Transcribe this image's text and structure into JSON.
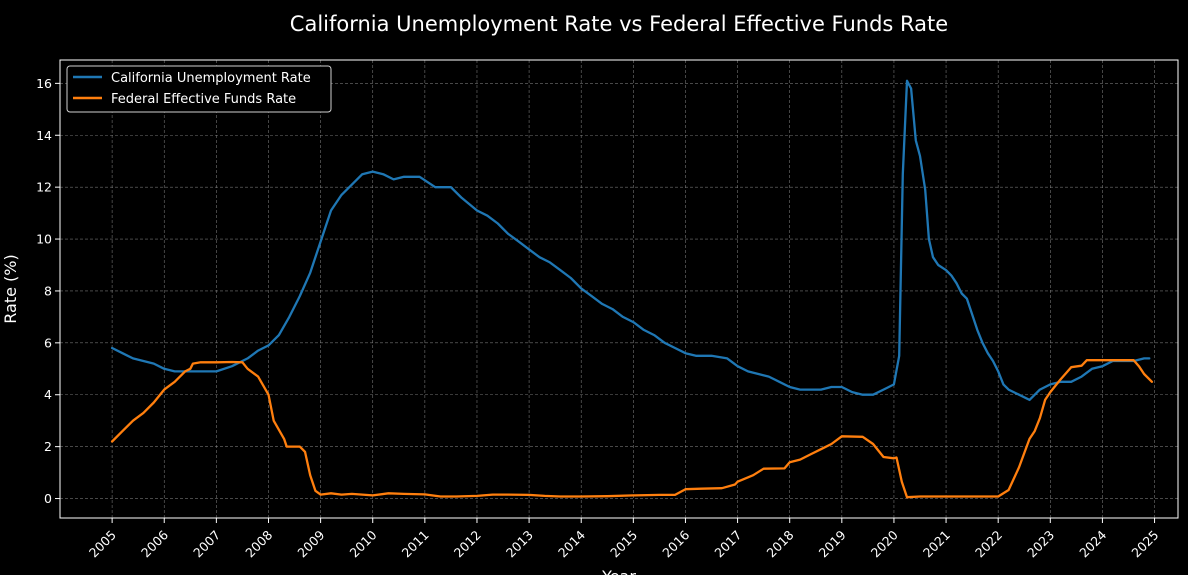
{
  "chart_data": {
    "type": "line",
    "title": "California Unemployment Rate vs Federal Effective Funds Rate",
    "xlabel": "Year",
    "ylabel": "Rate (%)",
    "xlim": [
      2004.0,
      2025.45
    ],
    "ylim": [
      -0.75,
      16.9
    ],
    "grid": true,
    "legend_position": "top-left",
    "x_ticks": [
      2005,
      2006,
      2007,
      2008,
      2009,
      2010,
      2011,
      2012,
      2013,
      2014,
      2015,
      2016,
      2017,
      2018,
      2019,
      2020,
      2021,
      2022,
      2023,
      2024,
      2025
    ],
    "y_ticks": [
      0,
      2,
      4,
      6,
      8,
      10,
      12,
      14,
      16
    ],
    "colors": {
      "background": "#000000",
      "axes": "#ffffff",
      "grid": "#9a9a9a"
    },
    "series": [
      {
        "name": "California Unemployment Rate",
        "color": "#1f77b4",
        "points": [
          [
            2005.0,
            5.8
          ],
          [
            2005.2,
            5.6
          ],
          [
            2005.4,
            5.4
          ],
          [
            2005.6,
            5.3
          ],
          [
            2005.8,
            5.2
          ],
          [
            2006.0,
            5.0
          ],
          [
            2006.2,
            4.9
          ],
          [
            2006.5,
            4.9
          ],
          [
            2007.0,
            4.9
          ],
          [
            2007.3,
            5.1
          ],
          [
            2007.6,
            5.4
          ],
          [
            2007.8,
            5.7
          ],
          [
            2008.0,
            5.9
          ],
          [
            2008.2,
            6.3
          ],
          [
            2008.4,
            7.0
          ],
          [
            2008.6,
            7.8
          ],
          [
            2008.8,
            8.7
          ],
          [
            2009.0,
            9.9
          ],
          [
            2009.2,
            11.1
          ],
          [
            2009.4,
            11.7
          ],
          [
            2009.6,
            12.1
          ],
          [
            2009.8,
            12.5
          ],
          [
            2010.0,
            12.6
          ],
          [
            2010.2,
            12.5
          ],
          [
            2010.4,
            12.3
          ],
          [
            2010.6,
            12.4
          ],
          [
            2010.9,
            12.4
          ],
          [
            2011.2,
            12.0
          ],
          [
            2011.5,
            12.0
          ],
          [
            2011.7,
            11.6
          ],
          [
            2012.0,
            11.1
          ],
          [
            2012.2,
            10.9
          ],
          [
            2012.4,
            10.6
          ],
          [
            2012.6,
            10.2
          ],
          [
            2012.8,
            9.9
          ],
          [
            2013.0,
            9.6
          ],
          [
            2013.2,
            9.3
          ],
          [
            2013.4,
            9.1
          ],
          [
            2013.6,
            8.8
          ],
          [
            2013.8,
            8.5
          ],
          [
            2014.0,
            8.1
          ],
          [
            2014.2,
            7.8
          ],
          [
            2014.4,
            7.5
          ],
          [
            2014.6,
            7.3
          ],
          [
            2014.8,
            7.0
          ],
          [
            2015.0,
            6.8
          ],
          [
            2015.2,
            6.5
          ],
          [
            2015.4,
            6.3
          ],
          [
            2015.6,
            6.0
          ],
          [
            2015.8,
            5.8
          ],
          [
            2016.0,
            5.6
          ],
          [
            2016.2,
            5.5
          ],
          [
            2016.5,
            5.5
          ],
          [
            2016.8,
            5.4
          ],
          [
            2017.0,
            5.1
          ],
          [
            2017.2,
            4.9
          ],
          [
            2017.4,
            4.8
          ],
          [
            2017.6,
            4.7
          ],
          [
            2017.8,
            4.5
          ],
          [
            2018.0,
            4.3
          ],
          [
            2018.2,
            4.2
          ],
          [
            2018.6,
            4.2
          ],
          [
            2018.8,
            4.3
          ],
          [
            2019.0,
            4.3
          ],
          [
            2019.2,
            4.1
          ],
          [
            2019.4,
            4.0
          ],
          [
            2019.6,
            4.0
          ],
          [
            2019.8,
            4.2
          ],
          [
            2020.0,
            4.4
          ],
          [
            2020.1,
            5.5
          ],
          [
            2020.17,
            12.5
          ],
          [
            2020.25,
            16.1
          ],
          [
            2020.33,
            15.8
          ],
          [
            2020.42,
            13.8
          ],
          [
            2020.5,
            13.2
          ],
          [
            2020.6,
            11.9
          ],
          [
            2020.67,
            10.0
          ],
          [
            2020.75,
            9.3
          ],
          [
            2020.85,
            9.0
          ],
          [
            2021.0,
            8.8
          ],
          [
            2021.1,
            8.6
          ],
          [
            2021.2,
            8.3
          ],
          [
            2021.3,
            7.9
          ],
          [
            2021.4,
            7.7
          ],
          [
            2021.5,
            7.1
          ],
          [
            2021.6,
            6.5
          ],
          [
            2021.7,
            6.0
          ],
          [
            2021.8,
            5.6
          ],
          [
            2021.9,
            5.3
          ],
          [
            2022.0,
            4.9
          ],
          [
            2022.1,
            4.4
          ],
          [
            2022.2,
            4.2
          ],
          [
            2022.4,
            4.0
          ],
          [
            2022.6,
            3.8
          ],
          [
            2022.8,
            4.2
          ],
          [
            2023.0,
            4.4
          ],
          [
            2023.2,
            4.5
          ],
          [
            2023.4,
            4.5
          ],
          [
            2023.6,
            4.7
          ],
          [
            2023.8,
            5.0
          ],
          [
            2024.0,
            5.1
          ],
          [
            2024.2,
            5.3
          ],
          [
            2024.4,
            5.3
          ],
          [
            2024.6,
            5.3
          ],
          [
            2024.8,
            5.4
          ],
          [
            2024.9,
            5.4
          ]
        ]
      },
      {
        "name": "Federal Effective Funds Rate",
        "color": "#ff7f0e",
        "points": [
          [
            2005.0,
            2.2
          ],
          [
            2005.2,
            2.6
          ],
          [
            2005.4,
            3.0
          ],
          [
            2005.6,
            3.3
          ],
          [
            2005.8,
            3.7
          ],
          [
            2006.0,
            4.2
          ],
          [
            2006.2,
            4.5
          ],
          [
            2006.4,
            4.9
          ],
          [
            2006.5,
            5.0
          ],
          [
            2006.55,
            5.2
          ],
          [
            2006.7,
            5.25
          ],
          [
            2007.0,
            5.25
          ],
          [
            2007.3,
            5.26
          ],
          [
            2007.5,
            5.25
          ],
          [
            2007.6,
            5.0
          ],
          [
            2007.8,
            4.7
          ],
          [
            2008.0,
            4.0
          ],
          [
            2008.1,
            3.0
          ],
          [
            2008.3,
            2.3
          ],
          [
            2008.35,
            2.0
          ],
          [
            2008.6,
            2.0
          ],
          [
            2008.7,
            1.8
          ],
          [
            2008.8,
            0.9
          ],
          [
            2008.9,
            0.3
          ],
          [
            2009.0,
            0.15
          ],
          [
            2009.2,
            0.2
          ],
          [
            2009.4,
            0.15
          ],
          [
            2009.6,
            0.18
          ],
          [
            2010.0,
            0.12
          ],
          [
            2010.3,
            0.2
          ],
          [
            2010.6,
            0.18
          ],
          [
            2011.0,
            0.16
          ],
          [
            2011.3,
            0.08
          ],
          [
            2011.6,
            0.08
          ],
          [
            2012.0,
            0.1
          ],
          [
            2012.3,
            0.15
          ],
          [
            2012.6,
            0.15
          ],
          [
            2013.0,
            0.14
          ],
          [
            2013.3,
            0.1
          ],
          [
            2013.6,
            0.08
          ],
          [
            2014.0,
            0.08
          ],
          [
            2014.5,
            0.09
          ],
          [
            2015.0,
            0.12
          ],
          [
            2015.5,
            0.14
          ],
          [
            2015.8,
            0.14
          ],
          [
            2016.0,
            0.36
          ],
          [
            2016.3,
            0.38
          ],
          [
            2016.7,
            0.4
          ],
          [
            2016.95,
            0.54
          ],
          [
            2017.0,
            0.65
          ],
          [
            2017.3,
            0.9
          ],
          [
            2017.5,
            1.15
          ],
          [
            2017.9,
            1.16
          ],
          [
            2018.0,
            1.4
          ],
          [
            2018.2,
            1.5
          ],
          [
            2018.4,
            1.7
          ],
          [
            2018.6,
            1.9
          ],
          [
            2018.8,
            2.1
          ],
          [
            2019.0,
            2.4
          ],
          [
            2019.4,
            2.38
          ],
          [
            2019.6,
            2.1
          ],
          [
            2019.8,
            1.6
          ],
          [
            2020.0,
            1.55
          ],
          [
            2020.05,
            1.58
          ],
          [
            2020.15,
            0.65
          ],
          [
            2020.25,
            0.05
          ],
          [
            2020.5,
            0.08
          ],
          [
            2021.0,
            0.08
          ],
          [
            2021.5,
            0.08
          ],
          [
            2022.0,
            0.08
          ],
          [
            2022.2,
            0.33
          ],
          [
            2022.4,
            1.2
          ],
          [
            2022.6,
            2.3
          ],
          [
            2022.7,
            2.6
          ],
          [
            2022.8,
            3.1
          ],
          [
            2022.9,
            3.8
          ],
          [
            2023.0,
            4.1
          ],
          [
            2023.2,
            4.6
          ],
          [
            2023.4,
            5.06
          ],
          [
            2023.6,
            5.12
          ],
          [
            2023.7,
            5.33
          ],
          [
            2024.0,
            5.33
          ],
          [
            2024.6,
            5.33
          ],
          [
            2024.7,
            5.1
          ],
          [
            2024.8,
            4.8
          ],
          [
            2024.95,
            4.5
          ]
        ]
      }
    ]
  }
}
